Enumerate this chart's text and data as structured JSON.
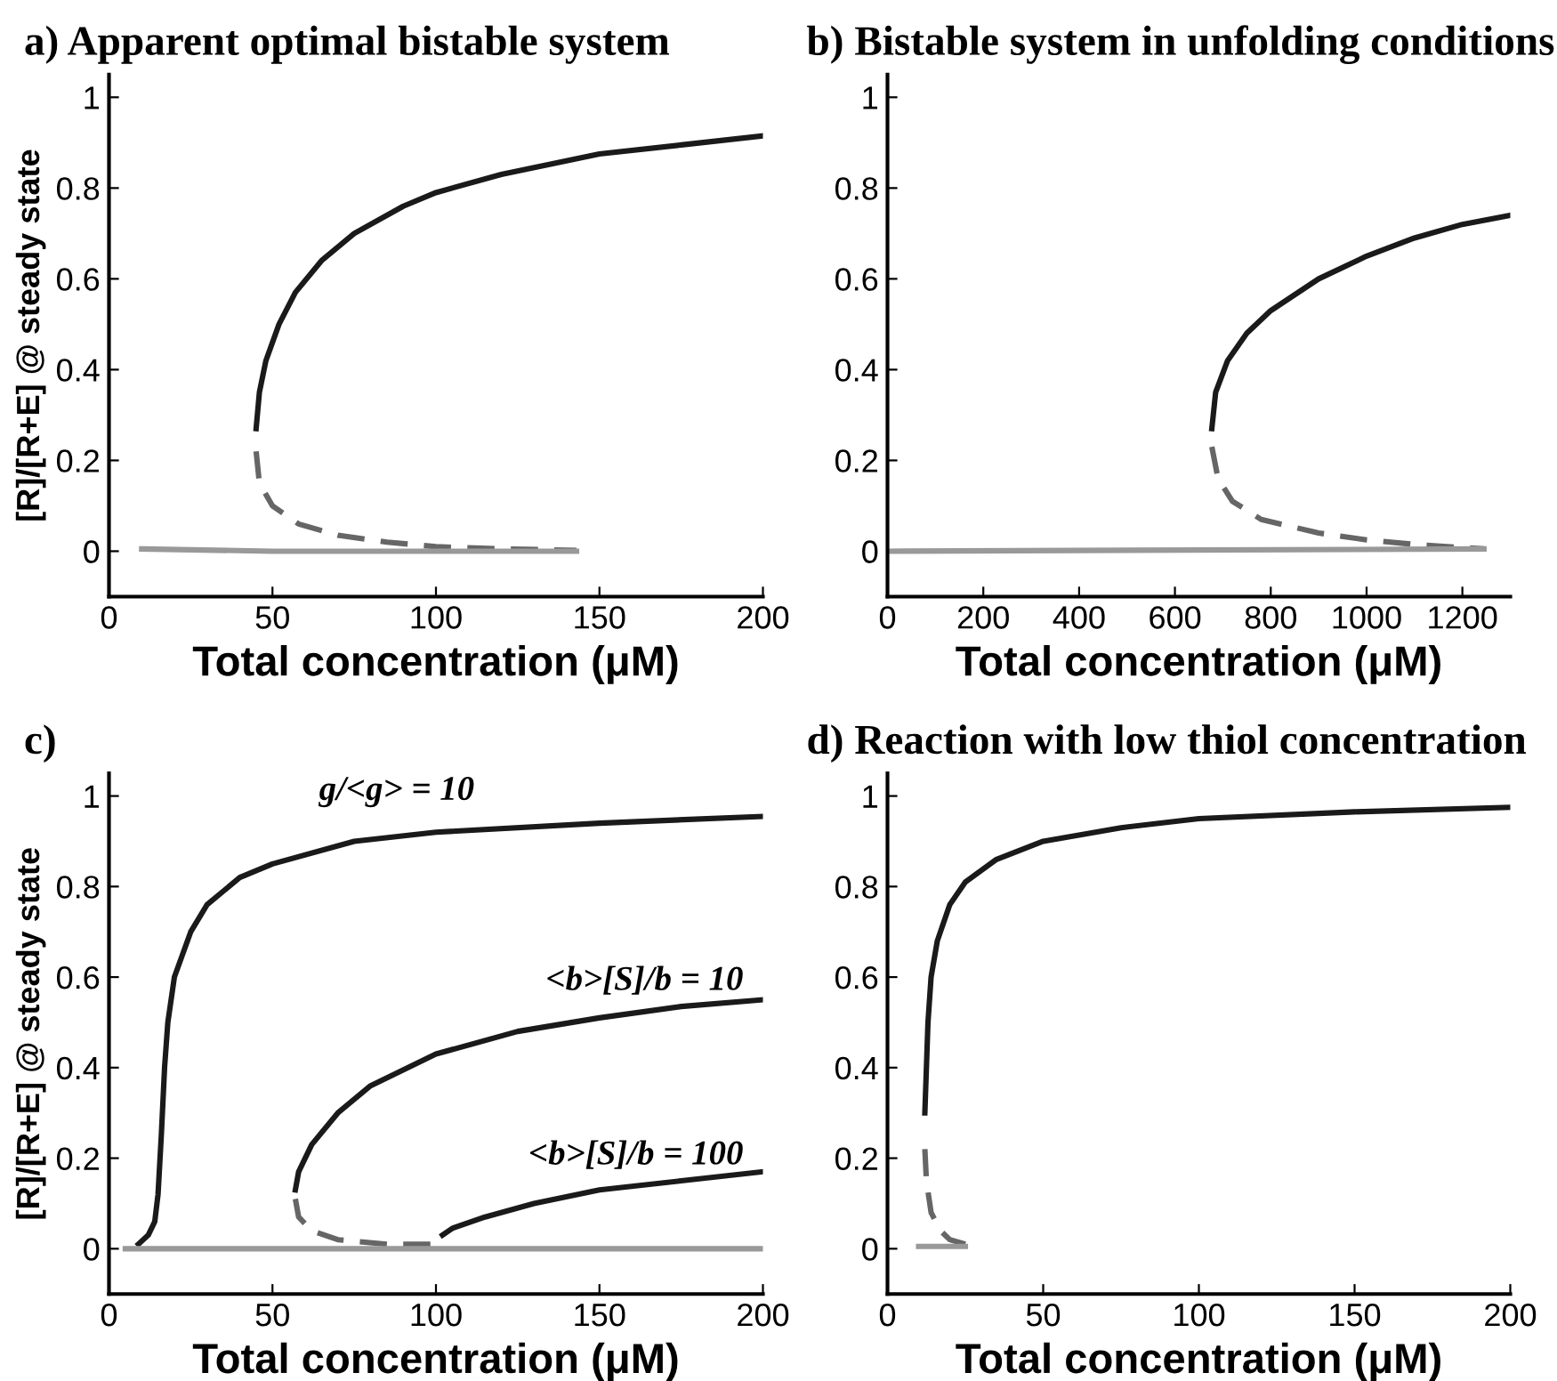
{
  "chart_data": [
    {
      "type": "line",
      "title": "a) Apparent optimal bistable system",
      "xlabel": "Total concentration (μM)",
      "ylabel": "[R]/[R+E] @ steady state",
      "xlim": [
        0,
        200
      ],
      "ylim": [
        -0.1,
        1.05
      ],
      "xticks": [
        0,
        50,
        100,
        150,
        200
      ],
      "yticks": [
        0,
        0.2,
        0.4,
        0.6,
        0.8,
        1
      ],
      "series": [
        {
          "color": "#1a1a1a",
          "line_style": "solid",
          "x": [
            45,
            46,
            48,
            52,
            57,
            65,
            75,
            90,
            100,
            120,
            150,
            175,
            200
          ],
          "values": [
            0.27,
            0.35,
            0.42,
            0.5,
            0.57,
            0.64,
            0.7,
            0.76,
            0.79,
            0.83,
            0.875,
            0.895,
            0.915
          ]
        },
        {
          "color": "#666666",
          "line_style": "dashed",
          "x": [
            45,
            46,
            50,
            58,
            70,
            85,
            100,
            120,
            143
          ],
          "values": [
            0.22,
            0.15,
            0.1,
            0.06,
            0.035,
            0.02,
            0.01,
            0.005,
            0.002
          ]
        },
        {
          "color": "#999999",
          "line_style": "solid",
          "x": [
            10,
            50,
            143
          ],
          "values": [
            0.005,
            0.0,
            0.0
          ]
        }
      ]
    },
    {
      "type": "line",
      "title": "b) Bistable system in unfolding conditions",
      "xlabel": "Total concentration (μM)",
      "xlim": [
        0,
        1300
      ],
      "ylim": [
        -0.1,
        1.05
      ],
      "xticks": [
        0,
        200,
        400,
        600,
        800,
        1000,
        1200
      ],
      "yticks": [
        0,
        0.2,
        0.4,
        0.6,
        0.8,
        1
      ],
      "series": [
        {
          "color": "#1a1a1a",
          "line_style": "solid",
          "x": [
            677,
            685,
            710,
            750,
            800,
            900,
            1000,
            1100,
            1200,
            1300
          ],
          "values": [
            0.27,
            0.35,
            0.42,
            0.48,
            0.53,
            0.6,
            0.65,
            0.69,
            0.72,
            0.74
          ]
        },
        {
          "color": "#666666",
          "line_style": "dashed",
          "x": [
            677,
            690,
            720,
            780,
            900,
            1000,
            1100,
            1245
          ],
          "values": [
            0.23,
            0.16,
            0.11,
            0.07,
            0.04,
            0.025,
            0.015,
            0.005
          ]
        },
        {
          "color": "#999999",
          "line_style": "solid",
          "x": [
            0,
            1245
          ],
          "values": [
            0.0,
            0.005
          ]
        }
      ]
    },
    {
      "type": "line",
      "title": "c)",
      "xlabel": "Total concentration (μM)",
      "ylabel": "[R]/[R+E] @ steady state",
      "xlim": [
        0,
        200
      ],
      "ylim": [
        -0.1,
        1.05
      ],
      "xticks": [
        0,
        50,
        100,
        150,
        200
      ],
      "yticks": [
        0,
        0.2,
        0.4,
        0.6,
        0.8,
        1
      ],
      "annotations": [
        "g/<g> = 10",
        "<b>[S]/b = 10",
        "<b>[S]/b = 100"
      ],
      "series": [
        {
          "color": "#1a1a1a",
          "line_style": "solid",
          "x": [
            9,
            12,
            14,
            15,
            16,
            17,
            18,
            20,
            25,
            30,
            40,
            50,
            75,
            100,
            150,
            200
          ],
          "values": [
            0.01,
            0.03,
            0.06,
            0.12,
            0.25,
            0.4,
            0.5,
            0.6,
            0.7,
            0.76,
            0.82,
            0.85,
            0.9,
            0.92,
            0.94,
            0.955
          ]
        },
        {
          "color": "#1a1a1a",
          "line_style": "solid",
          "x": [
            57,
            58,
            62,
            70,
            80,
            100,
            125,
            150,
            175,
            200
          ],
          "values": [
            0.13,
            0.17,
            0.23,
            0.3,
            0.36,
            0.43,
            0.48,
            0.51,
            0.535,
            0.55
          ]
        },
        {
          "color": "#666666",
          "line_style": "dashed",
          "x": [
            57,
            58,
            62,
            70,
            85,
            100
          ],
          "values": [
            0.11,
            0.07,
            0.04,
            0.02,
            0.01,
            0.01
          ]
        },
        {
          "color": "#1a1a1a",
          "line_style": "solid",
          "x": [
            102,
            105,
            115,
            130,
            150,
            175,
            200
          ],
          "values": [
            0.03,
            0.045,
            0.07,
            0.1,
            0.13,
            0.15,
            0.17
          ]
        },
        {
          "color": "#999999",
          "line_style": "solid",
          "x": [
            5,
            200
          ],
          "values": [
            0.0,
            0.0
          ]
        }
      ]
    },
    {
      "type": "line",
      "title": "d) Reaction with low thiol concentration",
      "xlabel": "Total concentration (μM)",
      "xlim": [
        0,
        200
      ],
      "ylim": [
        -0.1,
        1.05
      ],
      "xticks": [
        0,
        50,
        100,
        150,
        200
      ],
      "yticks": [
        0,
        0.2,
        0.4,
        0.6,
        0.8,
        1
      ],
      "series": [
        {
          "color": "#1a1a1a",
          "line_style": "solid",
          "x": [
            12,
            12.5,
            13,
            14,
            16,
            20,
            25,
            35,
            50,
            75,
            100,
            150,
            200
          ],
          "values": [
            0.3,
            0.4,
            0.5,
            0.6,
            0.68,
            0.76,
            0.81,
            0.86,
            0.9,
            0.93,
            0.95,
            0.965,
            0.975
          ]
        },
        {
          "color": "#666666",
          "line_style": "dashed",
          "x": [
            12,
            12.5,
            14,
            17,
            20,
            25
          ],
          "values": [
            0.22,
            0.15,
            0.08,
            0.04,
            0.02,
            0.01
          ]
        },
        {
          "color": "#999999",
          "line_style": "solid",
          "x": [
            10,
            25
          ],
          "values": [
            0.005,
            0.005
          ]
        }
      ]
    }
  ]
}
